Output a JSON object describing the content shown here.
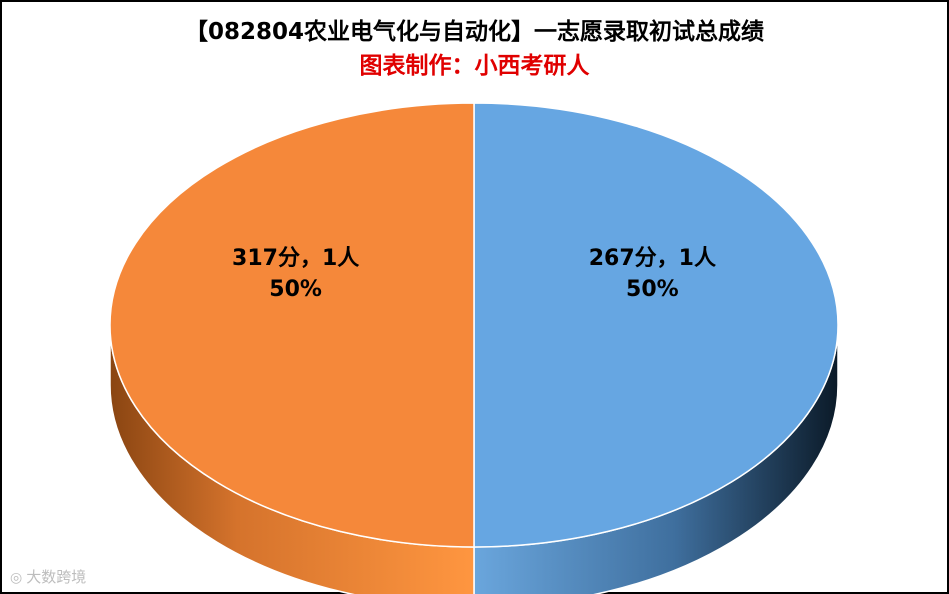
{
  "title": "【082804农业电气化与自动化】一志愿录取初试总成绩",
  "subtitle": "图表制作：小西考研人",
  "watermark": "大数跨境",
  "watermark_icon": "camera-icon",
  "colors": {
    "slice_orange": "#F5883A",
    "slice_blue": "#66A6E2",
    "subtitle_red": "#E00000"
  },
  "chart_data": {
    "type": "pie",
    "style": "3d",
    "title": "【082804农业电气化与自动化】一志愿录取初试总成绩",
    "subtitle": "图表制作：小西考研人",
    "slices": [
      {
        "category": "267分",
        "value": 1,
        "percent": 50,
        "label_line1": "267分，1人",
        "label_line2": "50%",
        "color": "#66A6E2"
      },
      {
        "category": "317分",
        "value": 1,
        "percent": 50,
        "label_line1": "317分，1人",
        "label_line2": "50%",
        "color": "#F5883A"
      }
    ]
  }
}
